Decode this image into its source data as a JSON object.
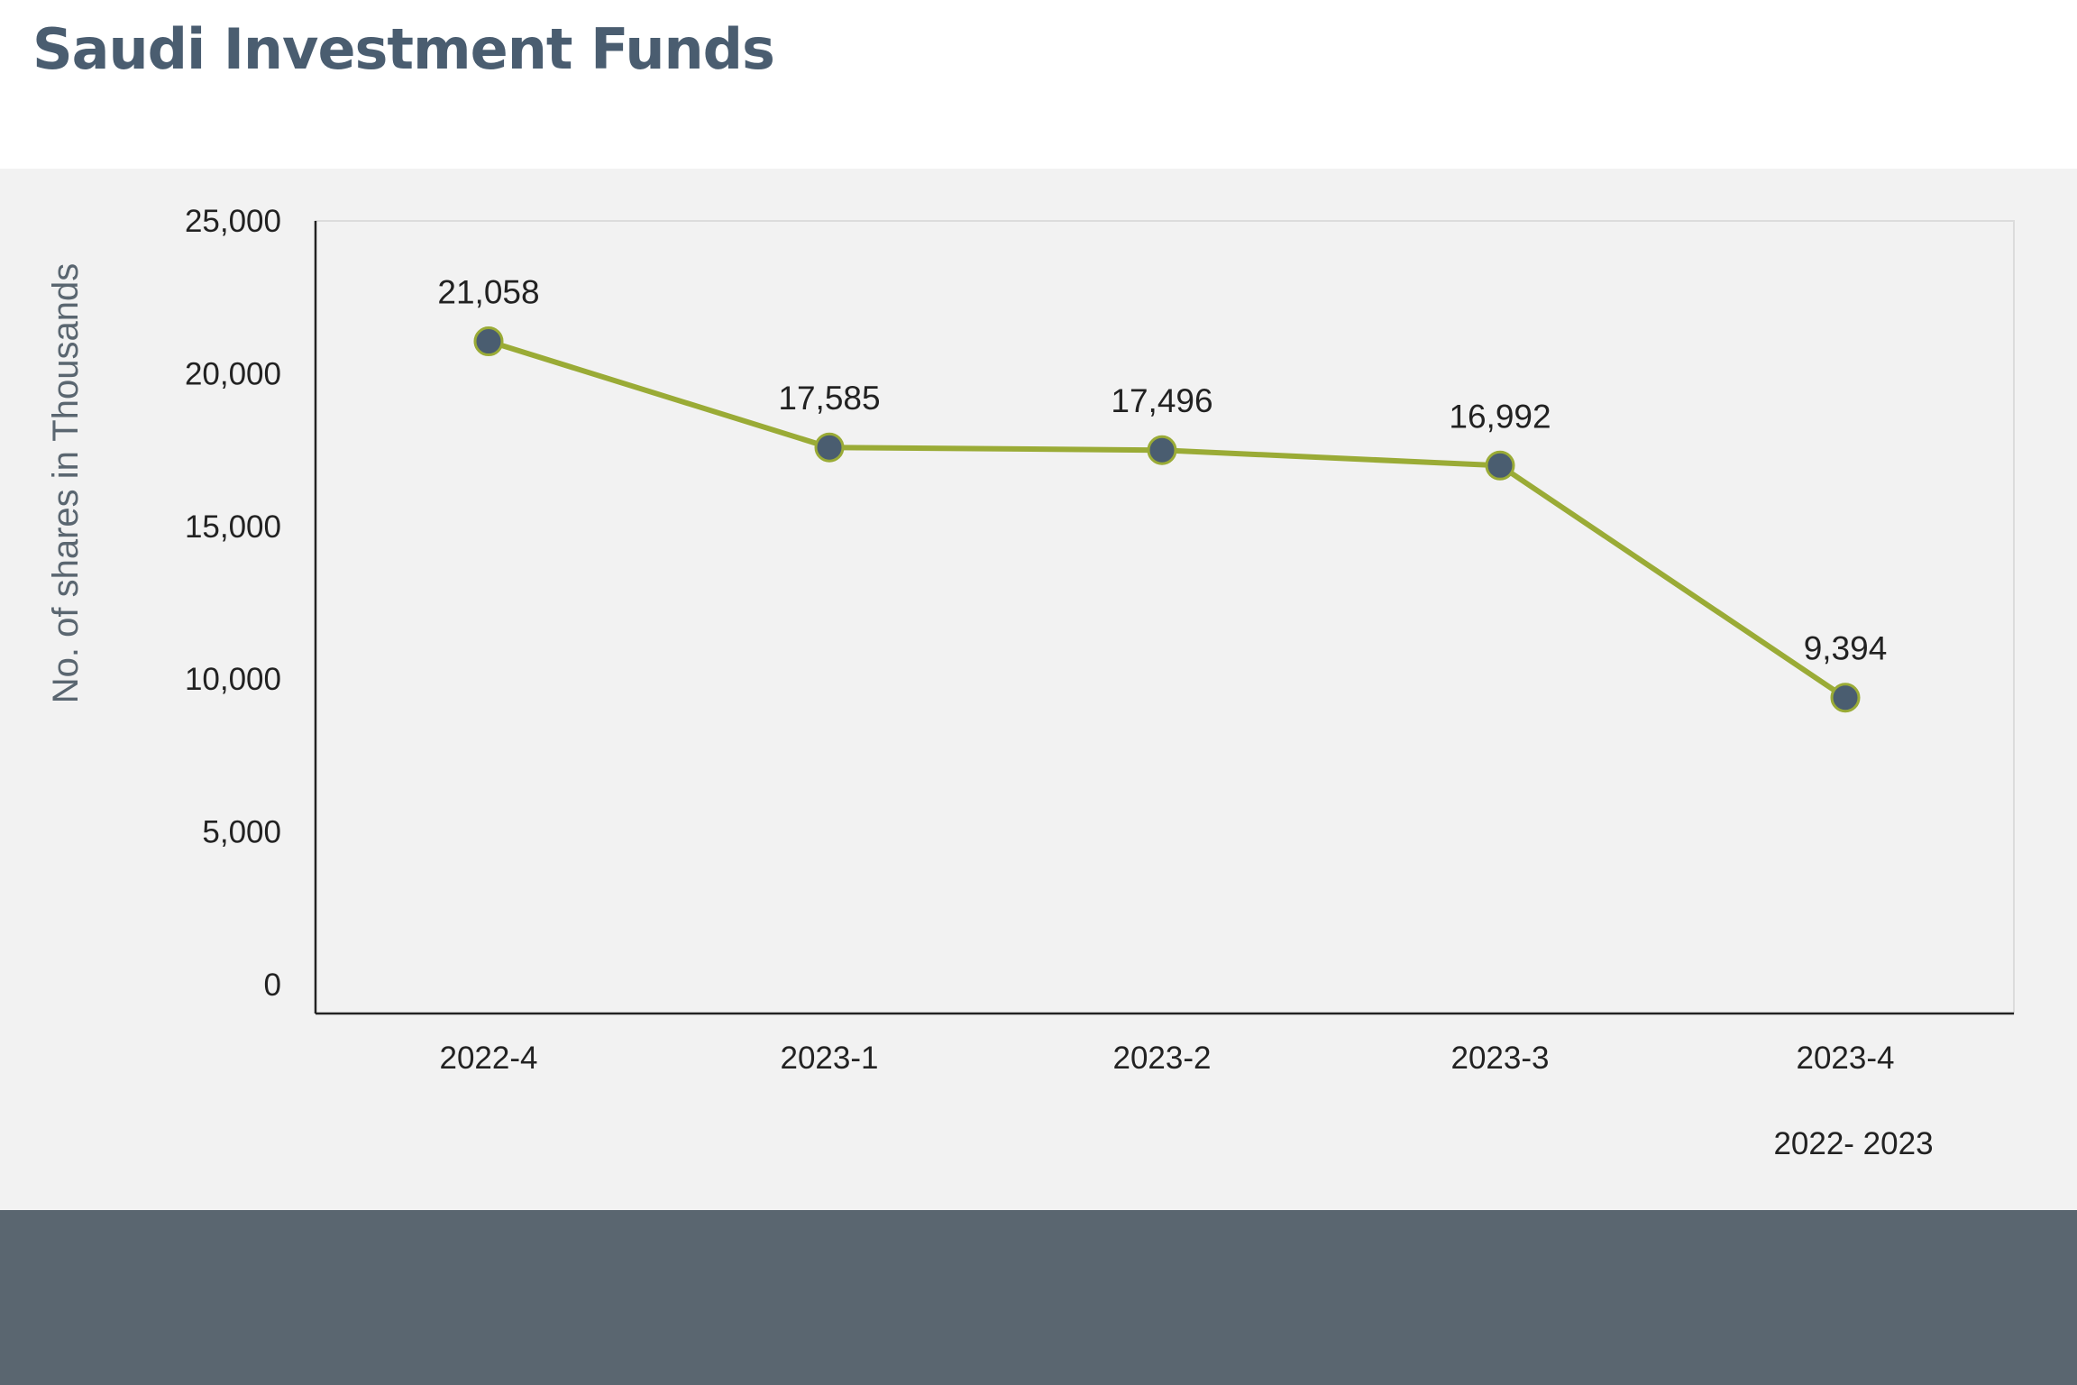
{
  "header": {
    "title": "Saudi Investment Funds"
  },
  "chart_data": {
    "type": "line",
    "title": "",
    "xlabel": "2022- 2023",
    "ylabel": "No. of shares in Thousands",
    "categories": [
      "2022-4",
      "2023-1",
      "2023-2",
      "2023-3",
      "2023-4"
    ],
    "values": [
      21058,
      17585,
      17496,
      16992,
      9394
    ],
    "data_labels": [
      "21,058",
      "17,585",
      "17,496",
      "16,992",
      "9,394"
    ],
    "ylim": [
      0,
      25000
    ],
    "yticks": [
      0,
      5000,
      10000,
      15000,
      20000,
      25000
    ],
    "ytick_labels": [
      "0",
      "5,000",
      "10,000",
      "15,000",
      "20,000",
      "25,000"
    ],
    "grid": false,
    "legend": "none",
    "colors": {
      "line": "#9aab36",
      "marker": "#4a5d70",
      "panel": "#f2f2f2",
      "footer": "#5a6670"
    }
  }
}
